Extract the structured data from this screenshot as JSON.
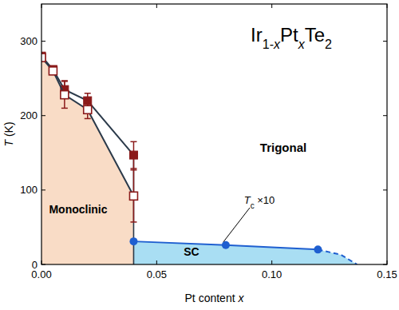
{
  "chart_data": {
    "type": "line",
    "title": "Ir1-xPtxTe2",
    "x_label": "Pt content x",
    "y_label": "T (K)",
    "xlim": [
      0,
      0.15
    ],
    "xticks": [
      {
        "value": 0,
        "label": "0.00"
      },
      {
        "value": 0.05,
        "label": "0.05"
      },
      {
        "value": 0.1,
        "label": "0.10"
      },
      {
        "value": 0.15,
        "label": "0.15"
      }
    ],
    "ylim": [
      0,
      350
    ],
    "yticks": [
      0,
      100,
      200,
      300
    ],
    "grid": false,
    "annotations": [
      "Monoclinic",
      "Trigonal",
      "SC",
      "Tc ×10"
    ],
    "series": [
      {
        "type": "line",
        "marker": "square_filled",
        "color": "#8b1a1a",
        "x": [
          0,
          0.005,
          0.01,
          0.02,
          0.04
        ],
        "values": [
          280,
          262,
          235,
          220,
          147
        ],
        "errors": [
          0,
          0,
          12,
          10,
          18
        ]
      },
      {
        "type": "line",
        "marker": "square_open",
        "color": "#8b1a1a",
        "x": [
          0,
          0.005,
          0.01,
          0.02,
          0.04
        ],
        "values": [
          278,
          260,
          228,
          208,
          92
        ],
        "errors": [
          0,
          0,
          18,
          12,
          35
        ]
      },
      {
        "type": "line",
        "marker": "circle",
        "color": "#1f5fd0",
        "x": [
          0.04,
          0.08,
          0.12
        ],
        "values": [
          31,
          26,
          20
        ]
      },
      {
        "type": "line",
        "marker": "none",
        "line_style": "dashed",
        "color": "#1f5fd0",
        "x": [
          0.12,
          0.13,
          0.137
        ],
        "values": [
          20,
          13,
          0
        ]
      }
    ]
  }
}
